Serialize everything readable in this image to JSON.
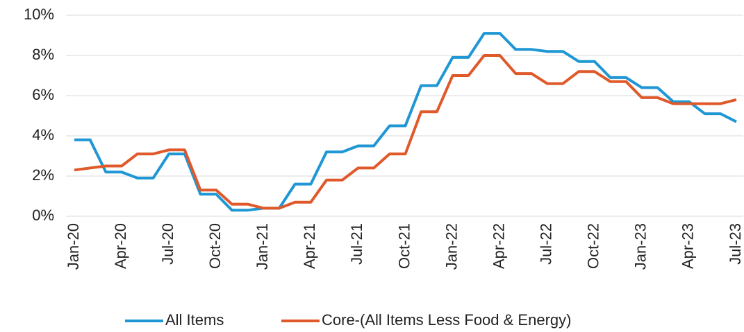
{
  "chart_data": {
    "type": "line",
    "categories": [
      "Jan-20",
      null,
      null,
      "Apr-20",
      null,
      null,
      "Jul-20",
      null,
      null,
      "Oct-20",
      null,
      null,
      "Jan-21",
      null,
      null,
      "Apr-21",
      null,
      null,
      "Jul-21",
      null,
      null,
      "Oct-21",
      null,
      null,
      "Jan-22",
      null,
      null,
      "Apr-22",
      null,
      null,
      "Jul-22",
      null,
      null,
      "Oct-22",
      null,
      null,
      "Jan-23",
      null,
      null,
      "Apr-23",
      null,
      null,
      "Jul-23"
    ],
    "series": [
      {
        "name": "All Items",
        "color": "#1f97d4",
        "values": [
          3.8,
          3.8,
          2.2,
          2.2,
          1.9,
          1.9,
          3.1,
          3.1,
          1.1,
          1.1,
          0.3,
          0.3,
          0.4,
          0.4,
          1.6,
          1.6,
          3.2,
          3.2,
          3.5,
          3.5,
          4.5,
          4.5,
          6.5,
          6.5,
          7.9,
          7.9,
          9.1,
          9.1,
          8.3,
          8.3,
          8.2,
          8.2,
          7.7,
          7.7,
          6.9,
          6.9,
          6.4,
          6.4,
          5.7,
          5.7,
          5.1,
          5.1,
          4.7
        ]
      },
      {
        "name": "Core-(All Items Less Food & Energy)",
        "color": "#e0592a",
        "values": [
          2.3,
          2.4,
          2.5,
          2.5,
          3.1,
          3.1,
          3.3,
          3.3,
          1.3,
          1.3,
          0.6,
          0.6,
          0.4,
          0.4,
          0.7,
          0.7,
          1.8,
          1.8,
          2.4,
          2.4,
          3.1,
          3.1,
          5.2,
          5.2,
          7.0,
          7.0,
          8.0,
          8.0,
          7.1,
          7.1,
          6.6,
          6.6,
          7.2,
          7.2,
          6.7,
          6.7,
          5.9,
          5.9,
          5.6,
          5.6,
          5.6,
          5.6,
          5.8
        ]
      }
    ],
    "ylim": [
      0,
      10
    ],
    "yticks": [
      {
        "value": 0,
        "label": "0%"
      },
      {
        "value": 2,
        "label": "2%"
      },
      {
        "value": 4,
        "label": "4%"
      },
      {
        "value": 6,
        "label": "6%"
      },
      {
        "value": 8,
        "label": "8%"
      },
      {
        "value": 10,
        "label": "10%"
      }
    ],
    "grid": true,
    "legend": "bottom"
  }
}
